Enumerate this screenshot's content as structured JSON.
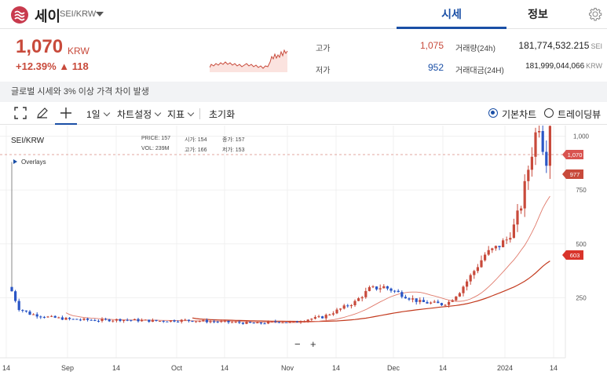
{
  "header": {
    "coin_name": "세이",
    "pair": "SEI/KRW",
    "tabs": [
      {
        "label": "시세"
      },
      {
        "label": "정보"
      }
    ]
  },
  "summary": {
    "price": "1,070",
    "currency": "KRW",
    "change": "+12.39% ▲ 118",
    "high_label": "고가",
    "high_value": "1,075",
    "low_label": "저가",
    "low_value": "952",
    "volume_label": "거래량(24h)",
    "volume_value": "181,774,532.215",
    "volume_unit": "SEI",
    "amount_label": "거래대금(24H)",
    "amount_value": "181,999,044,066",
    "amount_unit": "KRW"
  },
  "notice": "글로벌 시세와 3% 이상 가격 차이 발생",
  "toolbar": {
    "interval": "1일",
    "chart_settings": "차트설정",
    "indicators": "지표",
    "reset": "초기화",
    "basic_chart": "기본차트",
    "tradingview": "트레이딩뷰"
  },
  "chart_data": {
    "type": "candlestick",
    "title": "SEI/KRW",
    "legend": {
      "price_label": "PRICE:",
      "price": "157",
      "open_label": "시가:",
      "open": "154",
      "close_label": "종가:",
      "close": "157",
      "vol_label": "VOL:",
      "vol": "239M",
      "high_label": "고가:",
      "high": "166",
      "low_label": "저가:",
      "low": "153"
    },
    "overlays_label": "Overlays",
    "x_ticks": [
      "14",
      "Sep",
      "14",
      "Oct",
      "14",
      "Nov",
      "14",
      "Dec",
      "14",
      "2024",
      "14"
    ],
    "y_ticks": [
      "1,000",
      "750",
      "500",
      "250"
    ],
    "price_tags": {
      "current": "1,070",
      "low": "977",
      "ma": "603"
    },
    "colors": {
      "up": "#c84a3b",
      "down": "#2a56c6",
      "ma_long": "#c33a1e",
      "ma_short": "#e07a6b"
    }
  }
}
